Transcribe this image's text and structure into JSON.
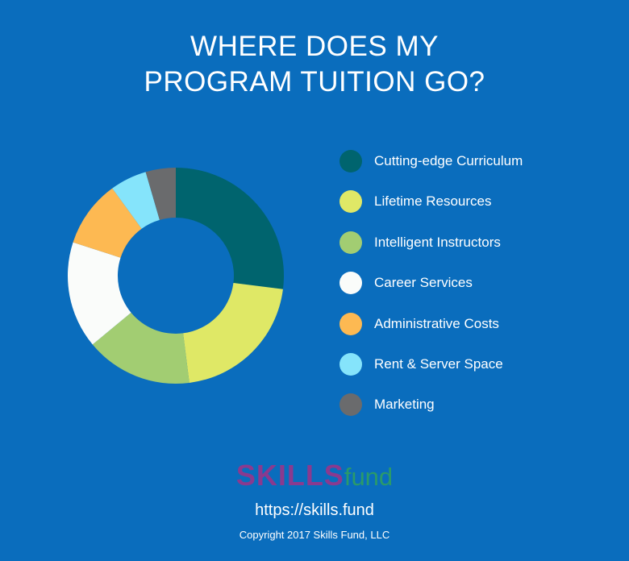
{
  "title": {
    "line1": "WHERE DOES MY",
    "line2": "PROGRAM TUITION GO?"
  },
  "chart_data": {
    "type": "pie",
    "donut": true,
    "title": "WHERE DOES MY PROGRAM TUITION GO?",
    "legend_position": "right",
    "categories": [
      "Cutting-edge Curriculum",
      "Lifetime Resources",
      "Intelligent Instructors",
      "Career Services",
      "Administrative Costs",
      "Rent & Server Space",
      "Marketing"
    ],
    "values": [
      27,
      21,
      16,
      16,
      10,
      5.5,
      4.5
    ],
    "colors": [
      "#00646e",
      "#dfe866",
      "#a2cd72",
      "#fafcfa",
      "#fdb952",
      "#85e4fb",
      "#6a6b6d"
    ]
  },
  "footer": {
    "logo_main": "SKILLS",
    "logo_sub": "fund",
    "url": "https://skills.fund",
    "copyright": "Copyright 2017 Skills Fund, LLC"
  }
}
